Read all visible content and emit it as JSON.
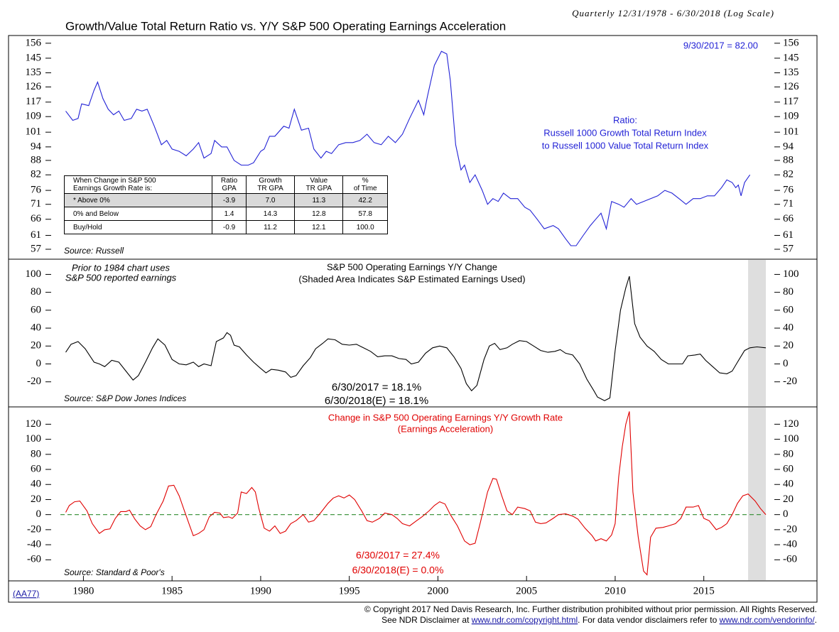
{
  "chart_data": [
    {
      "type": "line",
      "log": true,
      "title": "Growth/Value Total Return Ratio vs. Y/Y S&P 500 Operating Earnings Acceleration",
      "subtitle": "Quarterly 12/31/1978 - 6/30/2018 (Log Scale)",
      "xlim": [
        1978.3,
        2018.9
      ],
      "ylim": [
        54.3,
        162
      ],
      "yticks": [
        57,
        61,
        66,
        71,
        76,
        82,
        88,
        94,
        101,
        109,
        117,
        126,
        135,
        145,
        156
      ],
      "x": [
        1979.0,
        1979.4,
        1979.7,
        1979.9,
        1980.3,
        1980.6,
        1980.8,
        1981.1,
        1981.4,
        1981.7,
        1982.0,
        1982.3,
        1982.7,
        1983.0,
        1983.3,
        1983.6,
        1984.0,
        1984.4,
        1984.7,
        1985.0,
        1985.4,
        1985.8,
        1986.2,
        1986.5,
        1986.8,
        1987.2,
        1987.4,
        1987.8,
        1988.1,
        1988.5,
        1988.9,
        1989.3,
        1989.6,
        1990.0,
        1990.2,
        1990.5,
        1990.8,
        1991.3,
        1991.6,
        1991.9,
        1992.3,
        1992.7,
        1993.0,
        1993.4,
        1993.7,
        1994.0,
        1994.4,
        1994.8,
        1995.2,
        1995.6,
        1996.0,
        1996.4,
        1996.8,
        1997.2,
        1997.6,
        1998.0,
        1998.4,
        1998.9,
        1999.2,
        1999.4,
        1999.8,
        2000.2,
        2000.5,
        2000.7,
        2001.0,
        2001.3,
        2001.5,
        2001.8,
        2002.1,
        2002.5,
        2002.8,
        2003.1,
        2003.4,
        2003.7,
        2004.1,
        2004.5,
        2004.9,
        2005.2,
        2005.6,
        2006.0,
        2006.5,
        2006.8,
        2007.2,
        2007.5,
        2007.8,
        2008.2,
        2008.6,
        2008.9,
        2009.2,
        2009.5,
        2009.8,
        2010.2,
        2010.5,
        2010.9,
        2011.2,
        2011.6,
        2012.0,
        2012.4,
        2012.8,
        2013.2,
        2013.6,
        2014.0,
        2014.4,
        2014.8,
        2015.2,
        2015.6,
        2016.0,
        2016.3,
        2016.6,
        2016.8,
        2016.95,
        2017.1,
        2017.3,
        2017.6
      ],
      "series": [
        {
          "color": "#2323d6",
          "values": [
            112,
            107,
            108,
            116,
            115,
            124,
            129,
            119,
            113,
            110,
            112,
            107,
            108,
            113,
            112,
            113,
            104,
            95,
            97,
            93,
            92,
            90,
            93,
            96,
            89,
            91,
            97,
            94,
            94,
            88,
            86,
            86,
            87,
            92,
            93,
            99,
            99,
            104,
            103,
            113,
            102,
            103,
            93,
            89,
            92,
            91,
            95,
            96,
            96,
            97,
            100,
            96,
            95,
            99,
            96,
            100,
            108,
            118,
            110,
            120,
            140,
            150,
            148,
            130,
            95,
            84,
            86,
            79,
            82,
            76,
            71,
            73,
            72,
            75,
            73,
            73,
            70,
            69,
            66,
            63,
            64,
            63,
            60,
            58,
            58,
            61,
            64,
            66,
            68,
            63,
            72,
            71,
            70,
            73,
            71,
            72,
            73,
            74,
            76,
            75,
            73,
            71,
            73,
            73,
            74,
            74,
            77,
            80,
            79,
            77,
            78,
            74,
            79,
            82
          ]
        }
      ],
      "annotations": [
        "9/30/2017 = 82.00",
        "Ratio:",
        "Russell 1000 Growth Total Return Index",
        "to Russell 1000 Value Total Return Index"
      ],
      "source": "Source: Russell",
      "table": {
        "header": [
          "When Change in S&P 500\nEarnings Growth Rate is:",
          "Ratio\nGPA",
          "Growth\nTR GPA",
          "Value\nTR GPA",
          "%\nof Time"
        ],
        "rows": [
          [
            "* Above 0%",
            "-3.9",
            "7.0",
            "11.3",
            "42.2"
          ],
          [
            "0% and Below",
            "1.4",
            "14.3",
            "12.8",
            "57.8"
          ],
          [
            "Buy/Hold",
            "-0.9",
            "11.2",
            "12.1",
            "100.0"
          ]
        ]
      }
    },
    {
      "type": "line",
      "title": "S&P 500 Operating Earnings Y/Y Change",
      "subtitle": "(Shaded Area Indicates S&P Estimated Earnings Used)",
      "xlim": [
        1978.3,
        2018.9
      ],
      "ylim": [
        -48,
        117
      ],
      "yticks": [
        -20,
        0,
        20,
        40,
        60,
        80,
        100
      ],
      "shaded_x": [
        2017.5,
        2018.5
      ],
      "x": [
        1979.0,
        1979.3,
        1979.7,
        1980.1,
        1980.6,
        1980.9,
        1981.2,
        1981.6,
        1982.0,
        1982.4,
        1982.8,
        1983.1,
        1983.5,
        1983.9,
        1984.2,
        1984.6,
        1985.0,
        1985.4,
        1985.8,
        1986.2,
        1986.5,
        1986.8,
        1987.2,
        1987.5,
        1987.9,
        1988.1,
        1988.3,
        1988.5,
        1988.8,
        1989.2,
        1989.6,
        1990.0,
        1990.3,
        1990.6,
        1991.0,
        1991.4,
        1991.7,
        1992.0,
        1992.4,
        1992.8,
        1993.1,
        1993.5,
        1993.8,
        1994.2,
        1994.6,
        1995.0,
        1995.4,
        1995.8,
        1996.2,
        1996.6,
        1997.0,
        1997.4,
        1997.8,
        1998.2,
        1998.5,
        1998.9,
        1999.3,
        1999.7,
        2000.1,
        2000.5,
        2000.9,
        2001.3,
        2001.6,
        2001.9,
        2002.2,
        2002.6,
        2002.9,
        2003.2,
        2003.5,
        2003.9,
        2004.2,
        2004.6,
        2005.0,
        2005.4,
        2005.8,
        2006.2,
        2006.6,
        2006.9,
        2007.2,
        2007.6,
        2008.0,
        2008.4,
        2008.8,
        2009.0,
        2009.4,
        2009.7,
        2010.0,
        2010.3,
        2010.6,
        2010.8,
        2011.1,
        2011.4,
        2011.8,
        2012.2,
        2012.6,
        2013.0,
        2013.4,
        2013.8,
        2014.1,
        2014.5,
        2014.8,
        2015.1,
        2015.5,
        2015.9,
        2016.3,
        2016.6,
        2016.9,
        2017.3,
        2017.6,
        2018.0,
        2018.5
      ],
      "series": [
        {
          "color": "#000000",
          "values": [
            13,
            22,
            25,
            17,
            2,
            0,
            -3,
            4,
            2,
            -8,
            -18,
            -13,
            2,
            18,
            28,
            21,
            5,
            0,
            -1,
            2,
            -3,
            0,
            -2,
            25,
            29,
            35,
            32,
            21,
            19,
            10,
            2,
            -5,
            -10,
            -6,
            -7,
            -9,
            -15,
            -13,
            -2,
            7,
            17,
            23,
            28,
            27,
            22,
            21,
            22,
            18,
            14,
            8,
            9,
            9,
            6,
            5,
            0,
            2,
            12,
            18,
            20,
            18,
            8,
            -5,
            -22,
            -30,
            -24,
            5,
            20,
            23,
            16,
            18,
            22,
            26,
            25,
            20,
            15,
            13,
            14,
            16,
            12,
            10,
            0,
            -17,
            -30,
            -37,
            -41,
            -38,
            15,
            60,
            85,
            98,
            45,
            30,
            20,
            14,
            5,
            0,
            0,
            0,
            9,
            10,
            11,
            4,
            -3,
            -10,
            -11,
            -8,
            2,
            15,
            18,
            19,
            18
          ]
        }
      ],
      "annotations": [
        "Prior to 1984 chart uses",
        "S&P 500 reported earnings",
        "6/30/2017 = 18.1%",
        "6/30/2018(E) = 18.1%"
      ],
      "source": "Source: S&P Dow Jones Indices"
    },
    {
      "type": "line",
      "title": "Change in S&P 500 Operating Earnings Y/Y Growth Rate",
      "subtitle": "(Earnings Acceleration)",
      "xlim": [
        1978.3,
        2018.9
      ],
      "ylim": [
        -88,
        143
      ],
      "yticks": [
        -60,
        -40,
        -20,
        0,
        20,
        40,
        60,
        80,
        100,
        120
      ],
      "xticks": [
        1980,
        1985,
        1990,
        1995,
        2000,
        2005,
        2010,
        2015
      ],
      "shaded_x": [
        2017.5,
        2018.5
      ],
      "refline": 0,
      "refline_color": "#2e8b2e",
      "x": [
        1979.0,
        1979.2,
        1979.5,
        1979.8,
        1980.2,
        1980.5,
        1980.9,
        1981.2,
        1981.5,
        1981.8,
        1982.1,
        1982.4,
        1982.6,
        1982.9,
        1983.2,
        1983.5,
        1983.8,
        1984.1,
        1984.5,
        1984.8,
        1985.1,
        1985.4,
        1985.7,
        1986.0,
        1986.2,
        1986.5,
        1986.8,
        1987.1,
        1987.4,
        1987.7,
        1987.9,
        1988.2,
        1988.4,
        1988.7,
        1988.9,
        1989.2,
        1989.5,
        1989.7,
        1989.9,
        1990.2,
        1990.5,
        1990.8,
        1991.1,
        1991.4,
        1991.7,
        1992.0,
        1992.4,
        1992.7,
        1993.0,
        1993.4,
        1993.8,
        1994.1,
        1994.4,
        1994.7,
        1995.0,
        1995.3,
        1995.7,
        1996.0,
        1996.3,
        1996.7,
        1997.0,
        1997.4,
        1997.7,
        1998.0,
        1998.4,
        1998.8,
        1999.1,
        1999.5,
        1999.8,
        2000.1,
        2000.4,
        2000.7,
        2001.1,
        2001.5,
        2001.8,
        2002.1,
        2002.4,
        2002.8,
        2003.1,
        2003.3,
        2003.6,
        2003.9,
        2004.2,
        2004.5,
        2004.9,
        2005.2,
        2005.5,
        2005.8,
        2006.1,
        2006.5,
        2006.8,
        2007.2,
        2007.6,
        2007.9,
        2008.3,
        2008.7,
        2008.9,
        2009.2,
        2009.5,
        2009.8,
        2010.0,
        2010.2,
        2010.4,
        2010.6,
        2010.8,
        2011.0,
        2011.3,
        2011.6,
        2011.8,
        2012.0,
        2012.3,
        2012.7,
        2013.0,
        2013.4,
        2013.7,
        2014.0,
        2014.4,
        2014.7,
        2015.0,
        2015.3,
        2015.7,
        2016.0,
        2016.3,
        2016.6,
        2016.9,
        2017.2,
        2017.5,
        2017.9,
        2018.2,
        2018.5
      ],
      "series": [
        {
          "color": "#e00000",
          "values": [
            3,
            12,
            17,
            18,
            5,
            -12,
            -25,
            -20,
            -19,
            -5,
            4,
            4,
            6,
            -6,
            -15,
            -20,
            -16,
            0,
            18,
            38,
            39,
            25,
            5,
            -15,
            -28,
            -25,
            -20,
            -3,
            3,
            2,
            -4,
            -3,
            -5,
            2,
            30,
            28,
            36,
            30,
            8,
            -18,
            -22,
            -15,
            -25,
            -22,
            -12,
            -8,
            0,
            -10,
            -8,
            3,
            15,
            22,
            25,
            22,
            26,
            20,
            5,
            -8,
            -10,
            -5,
            2,
            0,
            -5,
            -12,
            -15,
            -8,
            -3,
            5,
            12,
            17,
            14,
            0,
            -15,
            -35,
            -40,
            -38,
            -10,
            30,
            48,
            47,
            25,
            5,
            0,
            10,
            8,
            5,
            -10,
            -12,
            -11,
            -5,
            0,
            1,
            -2,
            -6,
            -18,
            -28,
            -35,
            -32,
            -35,
            -27,
            -12,
            50,
            90,
            120,
            137,
            30,
            -30,
            -75,
            -80,
            -30,
            -18,
            -17,
            -15,
            -12,
            -5,
            10,
            10,
            12,
            -5,
            -8,
            -20,
            -17,
            -12,
            0,
            15,
            25,
            27.4,
            18,
            8,
            0
          ]
        }
      ],
      "annotations": [
        "6/30/2017 = 27.4%",
        "6/30/2018(E) = 0.0%"
      ],
      "source": "Source: Standard & Poor's"
    }
  ],
  "footer": {
    "code": "(AA77)",
    "line1": "© Copyright 2017 Ned Davis Research, Inc.  Further distribution prohibited without prior permission.  All Rights Reserved.",
    "line2": [
      "See NDR Disclaimer at ",
      "www.ndr.com/copyright.html",
      ". For data vendor disclaimers refer to ",
      "www.ndr.com/vendorinfo/",
      "."
    ]
  }
}
